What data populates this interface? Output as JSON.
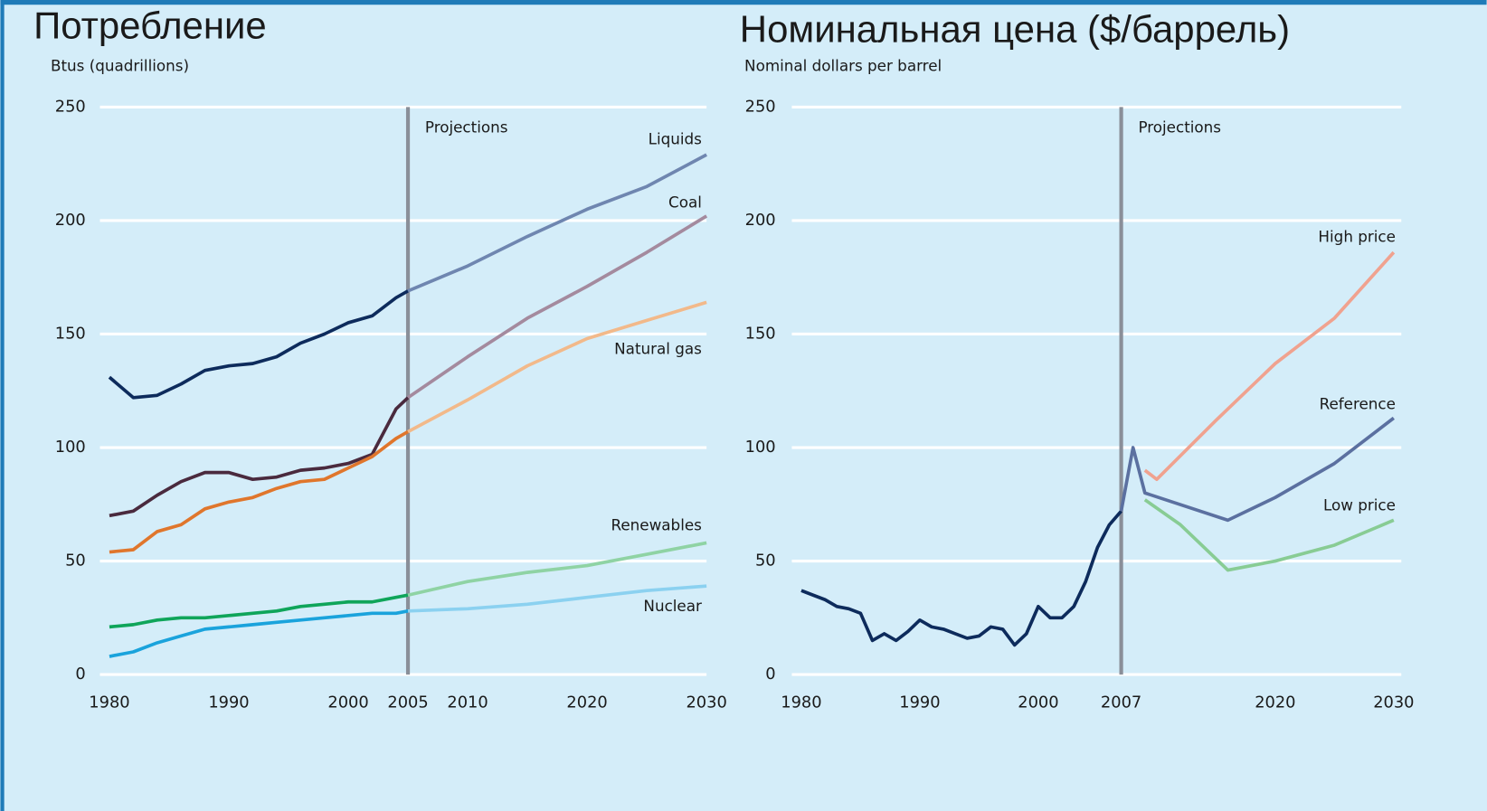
{
  "chart_data": [
    {
      "type": "line",
      "title": "Потребление",
      "y_label": "Btus (quadrillions)",
      "xlim": [
        1980,
        2030
      ],
      "xticks": [
        1980,
        1990,
        2000,
        2005,
        2010,
        2020,
        2030
      ],
      "ylim": [
        0,
        250
      ],
      "yticks": [
        0,
        50,
        100,
        150,
        200,
        250
      ],
      "grid": true,
      "projection_x": 2005,
      "annotation": "Projections",
      "x": [
        1980,
        1982,
        1984,
        1986,
        1988,
        1990,
        1992,
        1994,
        1996,
        1998,
        2000,
        2002,
        2004,
        2005,
        2010,
        2015,
        2020,
        2025,
        2030
      ],
      "series": [
        {
          "name": "Liquids",
          "color": "#0d2b5c",
          "projection_color": "#6f86b0",
          "values": [
            131,
            122,
            123,
            128,
            134,
            136,
            137,
            140,
            146,
            150,
            155,
            158,
            166,
            169,
            180,
            193,
            205,
            215,
            229
          ]
        },
        {
          "name": "Coal",
          "color": "#4a2a3e",
          "projection_color": "#a48a9e",
          "values": [
            70,
            72,
            79,
            85,
            89,
            89,
            86,
            87,
            90,
            91,
            93,
            97,
            117,
            122,
            140,
            157,
            171,
            186,
            202
          ]
        },
        {
          "name": "Natural gas",
          "color": "#e0762c",
          "projection_color": "#f2b98a",
          "values": [
            54,
            55,
            63,
            66,
            73,
            76,
            78,
            82,
            85,
            86,
            91,
            96,
            104,
            107,
            121,
            136,
            148,
            156,
            164
          ]
        },
        {
          "name": "Renewables",
          "color": "#0fa55a",
          "projection_color": "#8fd3a4",
          "values": [
            21,
            22,
            24,
            25,
            25,
            26,
            27,
            28,
            30,
            31,
            32,
            32,
            34,
            35,
            41,
            45,
            48,
            53,
            58
          ]
        },
        {
          "name": "Nuclear",
          "color": "#1aa3dc",
          "projection_color": "#8bd1f0",
          "values": [
            8,
            10,
            14,
            17,
            20,
            21,
            22,
            23,
            24,
            25,
            26,
            27,
            27,
            28,
            29,
            31,
            34,
            37,
            39
          ]
        }
      ]
    },
    {
      "type": "line",
      "title": "Номинальная цена ($/баррель)",
      "y_label": "Nominal dollars per barrel",
      "xlim": [
        1980,
        2030
      ],
      "xticks": [
        1980,
        1990,
        2000,
        2007,
        2020,
        2030
      ],
      "ylim": [
        0,
        250
      ],
      "yticks": [
        0,
        50,
        100,
        150,
        200,
        250
      ],
      "grid": true,
      "projection_x": 2007,
      "annotation": "Projections",
      "series": [
        {
          "color": "#0d2b5c",
          "x": [
            1980,
            1981,
            1982,
            1983,
            1984,
            1985,
            1986,
            1987,
            1988,
            1989,
            1990,
            1991,
            1992,
            1993,
            1994,
            1995,
            1996,
            1997,
            1998,
            1999,
            2000,
            2001,
            2002,
            2003,
            2004,
            2005,
            2006,
            2007
          ],
          "values": [
            37,
            35,
            33,
            30,
            29,
            27,
            15,
            18,
            15,
            19,
            24,
            21,
            20,
            18,
            16,
            17,
            21,
            20,
            13,
            18,
            30,
            25,
            25,
            30,
            41,
            56,
            66,
            72
          ]
        },
        {
          "name": "High price",
          "color": "#f0a28f",
          "x": [
            2009,
            2010,
            2015,
            2020,
            2025,
            2030
          ],
          "values": [
            90,
            86,
            112,
            137,
            157,
            186
          ]
        },
        {
          "name": "Reference",
          "color": "#5b70a0",
          "x": [
            2007,
            2008,
            2009,
            2016,
            2020,
            2025,
            2030
          ],
          "values": [
            72,
            100,
            80,
            68,
            78,
            93,
            113
          ]
        },
        {
          "name": "Low price",
          "color": "#88cc94",
          "x": [
            2009,
            2012,
            2016,
            2020,
            2025,
            2030
          ],
          "values": [
            77,
            66,
            46,
            50,
            57,
            68
          ]
        }
      ]
    }
  ]
}
